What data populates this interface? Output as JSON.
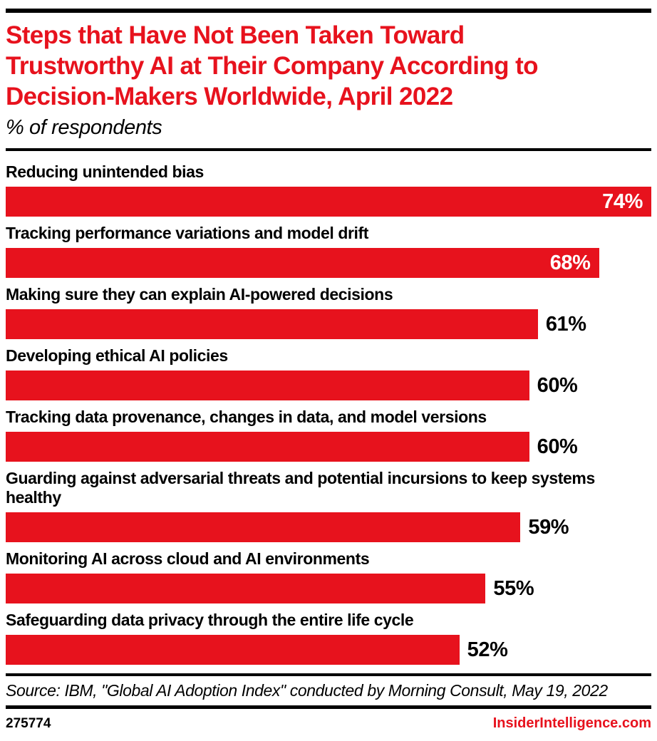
{
  "colors": {
    "accent_red": "#e7121d",
    "text_black": "#000000",
    "inside_value_white": "#ffffff"
  },
  "header": {
    "title": "Steps that Have Not Been Taken Toward Trustworthy AI at Their Company According to Decision-Makers Worldwide, April 2022",
    "title_lines": [
      "Steps that Have Not Been Taken Toward",
      "Trustworthy AI at Their Company According to",
      "Decision-Makers Worldwide, April 2022"
    ],
    "subtitle": "% of respondents"
  },
  "chart_data": {
    "type": "bar",
    "orientation": "horizontal",
    "title": "Steps that Have Not Been Taken Toward Trustworthy AI at Their Company According to Decision-Makers Worldwide, April 2022",
    "subtitle": "% of respondents",
    "unit": "%",
    "xlim": [
      0,
      74
    ],
    "grid": false,
    "legend": false,
    "bar_color": "#e7121d",
    "categories": [
      "Reducing unintended bias",
      "Tracking performance variations and model drift",
      "Making sure they can explain AI-powered decisions",
      "Developing ethical AI policies",
      "Tracking data provenance, changes in data, and model versions",
      "Guarding against adversarial threats and potential incursions to keep systems healthy",
      "Monitoring AI across cloud and AI environments",
      "Safeguarding data privacy through the entire life cycle"
    ],
    "values": [
      74,
      68,
      61,
      60,
      60,
      59,
      55,
      52
    ],
    "value_labels": [
      "74%",
      "68%",
      "61%",
      "60%",
      "60%",
      "59%",
      "55%",
      "52%"
    ],
    "value_label_inside": [
      true,
      true,
      false,
      false,
      false,
      false,
      false,
      false
    ]
  },
  "footer": {
    "source": "Source: IBM, \"Global AI Adoption Index\" conducted by Morning Consult, May 19, 2022",
    "chart_id": "275774",
    "brand": "InsiderIntelligence.com"
  }
}
